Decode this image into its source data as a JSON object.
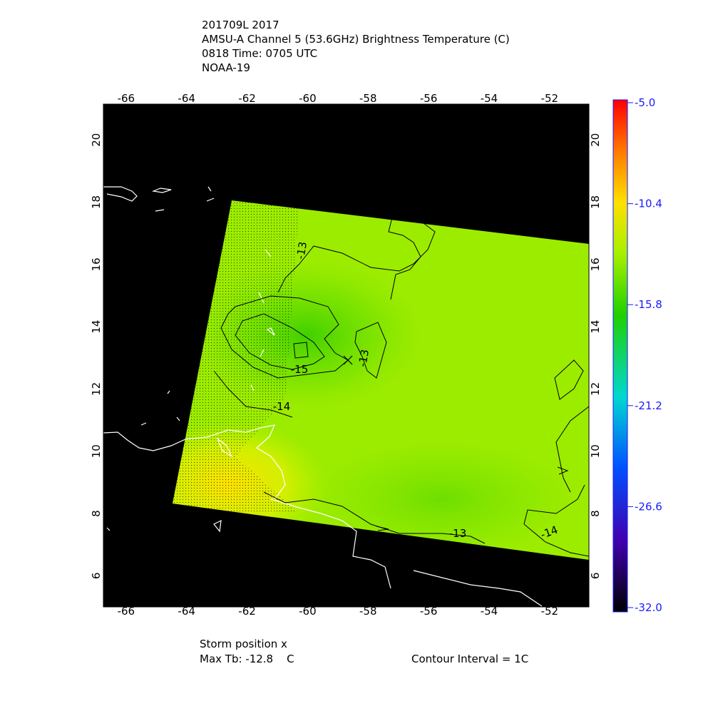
{
  "header": {
    "lines": [
      "201709L 2017",
      "AMSU-A Channel 5 (53.6GHz) Brightness Temperature (C)",
      "0818 Time: 0705 UTC",
      "NOAA-19"
    ]
  },
  "map": {
    "xlim": [
      -66.75,
      -50.7
    ],
    "ylim": [
      5,
      21.15
    ],
    "lon_ticks": [
      -66,
      -64,
      -62,
      -60,
      -58,
      -56,
      -54,
      -52
    ],
    "lat_ticks": [
      6,
      8,
      10,
      12,
      14,
      16,
      18,
      20
    ],
    "contour_labels": [
      -13,
      -15,
      -14,
      -13,
      -13,
      -14
    ]
  },
  "colorbar": {
    "lim": [
      -32,
      -5
    ],
    "ticks": [
      {
        "value": -5,
        "label": "-5.0"
      },
      -10.4,
      -15.8,
      -21.2,
      -26.6,
      {
        "value": -32,
        "label": "-32.0"
      }
    ]
  },
  "footer": {
    "storm": "Storm position x",
    "max_tb": "Max Tb: -12.8    C",
    "interval": "Contour Interval = 1C"
  }
}
